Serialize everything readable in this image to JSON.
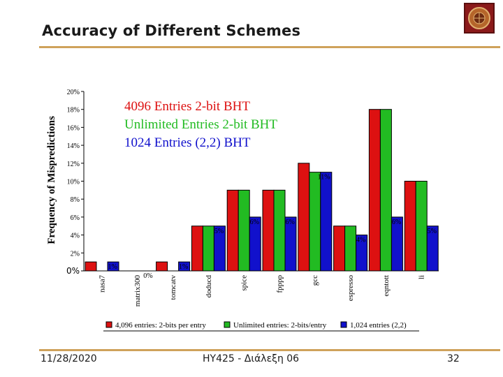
{
  "slide": {
    "title": "Accuracy of Different Schemes",
    "footer_date": "11/28/2020",
    "footer_course": "HY425 - Διάλεξη 06",
    "page_number": "32"
  },
  "colors": {
    "accent_rule": "#cfa25b",
    "series_red": "#dd1111",
    "series_green": "#22bb22",
    "series_blue": "#1111cc"
  },
  "chart_data": {
    "type": "bar",
    "ylabel": "Frequency of Mispredictions",
    "ylim": [
      0,
      20
    ],
    "yticks": [
      "0%",
      "2%",
      "4%",
      "6%",
      "8%",
      "10%",
      "12%",
      "14%",
      "16%",
      "18%",
      "20%"
    ],
    "categories": [
      "nasa7",
      "matrix300",
      "tomcatv",
      "doducd",
      "spice",
      "fpppp",
      "gcc",
      "espresso",
      "eqntott",
      "li"
    ],
    "series": [
      {
        "name": "4,096 entries: 2-bits per entry",
        "color": "#dd1111",
        "values": [
          1,
          0,
          1,
          5,
          9,
          9,
          12,
          5,
          18,
          10
        ]
      },
      {
        "name": "Unlimited entries: 2-bits/entry",
        "color": "#22bb22",
        "values": [
          0,
          0,
          0,
          5,
          9,
          9,
          11,
          5,
          18,
          10
        ]
      },
      {
        "name": "1,024 entries (2,2)",
        "color": "#1111cc",
        "values": [
          1,
          0,
          1,
          5,
          6,
          6,
          11,
          4,
          6,
          5
        ]
      }
    ],
    "annotations": [
      {
        "text": "1%",
        "category": "nasa7",
        "value": 1
      },
      {
        "text": "0%",
        "category": "matrix300",
        "value": 0
      },
      {
        "text": "1%",
        "category": "tomcatv",
        "value": 1
      },
      {
        "text": "5%",
        "category": "doducd",
        "value": 5
      },
      {
        "text": "6%",
        "category": "spice",
        "value": 6
      },
      {
        "text": "6%",
        "category": "fpppp",
        "value": 6
      },
      {
        "text": "11%",
        "category": "gcc",
        "value": 11
      },
      {
        "text": "4%",
        "category": "espresso",
        "value": 4
      },
      {
        "text": "6%",
        "category": "eqntott",
        "value": 6
      },
      {
        "text": "5%",
        "category": "li",
        "value": 5
      }
    ],
    "overlay_legend": [
      {
        "text": "4096 Entries 2-bit BHT",
        "color": "#dd1111"
      },
      {
        "text": "Unlimited Entries 2-bit BHT",
        "color": "#22bb22"
      },
      {
        "text": "1024 Entries (2,2) BHT",
        "color": "#1111cc"
      }
    ],
    "legend_position": "bottom",
    "grid": false
  }
}
